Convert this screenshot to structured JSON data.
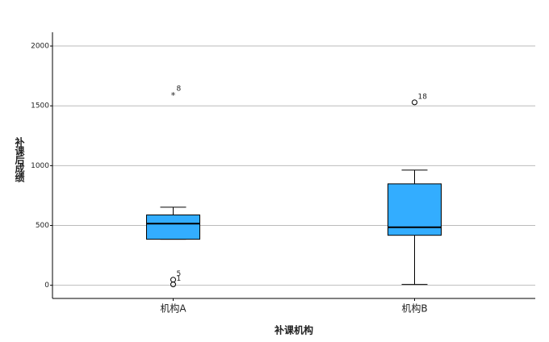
{
  "chart_data": {
    "type": "box",
    "x_label": "补课机构",
    "y_label": "补课后成绩",
    "categories": [
      "机构A",
      "机构B"
    ],
    "color": "#33adff",
    "ylim": [
      -110,
      2115
    ],
    "yticks": [
      0,
      500,
      1000,
      1500,
      2000
    ],
    "grid": true,
    "boxes": [
      {
        "whisker_low": 385,
        "q1": 385,
        "median": 515,
        "q3": 588,
        "whisker_high": 653,
        "outliers": [
          {
            "value": 1596,
            "label": "8",
            "marker": "star"
          },
          {
            "value": 47,
            "label": "5",
            "marker": "circle"
          },
          {
            "value": 7,
            "label": "1",
            "marker": "circle"
          }
        ]
      },
      {
        "whisker_low": 7,
        "q1": 418,
        "median": 485,
        "q3": 848,
        "whisker_high": 963,
        "outliers": [
          {
            "value": 1529,
            "label": "18",
            "marker": "circle"
          }
        ]
      }
    ]
  }
}
